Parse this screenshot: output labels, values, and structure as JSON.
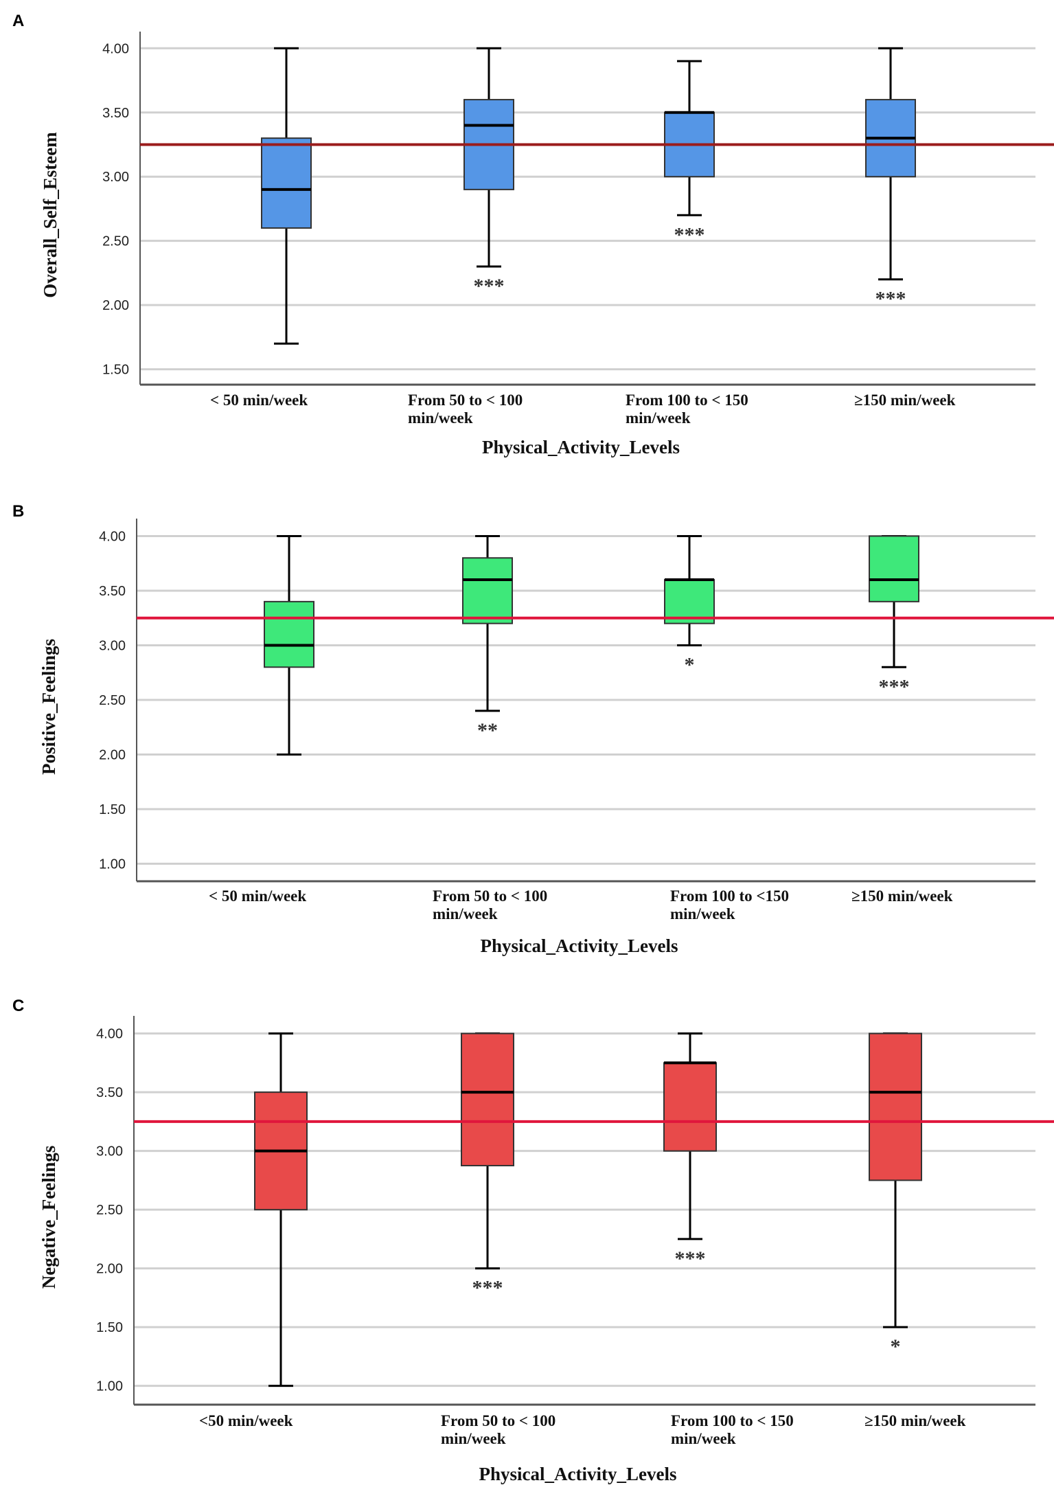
{
  "chart_data": [
    {
      "type": "box",
      "panel_label": "A",
      "ylabel": "Overall_Self_Esteem",
      "xlabel": "Physical_Activity_Levels",
      "ylim": [
        1.38,
        4.13
      ],
      "yticks": [
        "1.50",
        "2.00",
        "2.50",
        "3.00",
        "3.50",
        "4.00"
      ],
      "reference_line": 3.25,
      "reference_color": "#9b1c1c",
      "box_color": "#5596e6",
      "grid": true,
      "categories": [
        [
          "< 50 min/week"
        ],
        [
          "From 50 to < 100",
          "min/week"
        ],
        [
          "From 100 to < 150",
          "min/week"
        ],
        [
          "≥150 min/week"
        ]
      ],
      "boxes": [
        {
          "min": 1.7,
          "q1": 2.6,
          "median": 2.9,
          "q3": 3.3,
          "max": 4.0,
          "sig": ""
        },
        {
          "min": 2.3,
          "q1": 2.9,
          "median": 3.4,
          "q3": 3.6,
          "max": 4.0,
          "sig": "***"
        },
        {
          "min": 2.7,
          "q1": 3.0,
          "median": 3.5,
          "q3": 3.5,
          "max": 3.9,
          "sig": "***"
        },
        {
          "min": 2.2,
          "q1": 3.0,
          "median": 3.3,
          "q3": 3.6,
          "max": 4.0,
          "sig": "***"
        }
      ]
    },
    {
      "type": "box",
      "panel_label": "B",
      "ylabel": "Positive_Feelings",
      "xlabel": "Physical_Activity_Levels",
      "ylim": [
        0.84,
        4.16
      ],
      "yticks": [
        "1.00",
        "1.50",
        "2.00",
        "2.50",
        "3.00",
        "3.50",
        "4.00"
      ],
      "reference_line": 3.25,
      "reference_color": "#e0163c",
      "box_color": "#3ee87a",
      "grid": true,
      "categories": [
        [
          "< 50 min/week"
        ],
        [
          "From 50 to < 100",
          "min/week"
        ],
        [
          "From 100 to <150",
          "min/week"
        ],
        [
          "≥150 min/week"
        ]
      ],
      "boxes": [
        {
          "min": 2.0,
          "q1": 2.8,
          "median": 3.0,
          "q3": 3.4,
          "max": 4.0,
          "sig": ""
        },
        {
          "min": 2.4,
          "q1": 3.2,
          "median": 3.6,
          "q3": 3.8,
          "max": 4.0,
          "sig": "**"
        },
        {
          "min": 3.0,
          "q1": 3.2,
          "median": 3.6,
          "q3": 3.6,
          "max": 4.0,
          "sig": "*"
        },
        {
          "min": 2.8,
          "q1": 3.4,
          "median": 3.6,
          "q3": 4.0,
          "max": 4.0,
          "sig": "***"
        }
      ]
    },
    {
      "type": "box",
      "panel_label": "C",
      "ylabel": "Negative_Feelings",
      "xlabel": "Physical_Activity_Levels",
      "ylim": [
        0.84,
        4.15
      ],
      "yticks": [
        "1.00",
        "1.50",
        "2.00",
        "2.50",
        "3.00",
        "3.50",
        "4.00"
      ],
      "reference_line": 3.25,
      "reference_color": "#e0163c",
      "box_color": "#e84a4a",
      "grid": true,
      "categories": [
        [
          "<50 min/week"
        ],
        [
          "From 50 to < 100",
          "min/week"
        ],
        [
          "From 100 to < 150",
          "min/week"
        ],
        [
          "≥150 min/week"
        ]
      ],
      "boxes": [
        {
          "min": 1.0,
          "q1": 2.5,
          "median": 3.0,
          "q3": 3.5,
          "max": 4.0,
          "sig": ""
        },
        {
          "min": 2.0,
          "q1": 2.875,
          "median": 3.5,
          "q3": 4.0,
          "max": 4.0,
          "sig": "***"
        },
        {
          "min": 2.25,
          "q1": 3.0,
          "median": 3.75,
          "q3": 3.75,
          "max": 4.0,
          "sig": "***"
        },
        {
          "min": 1.5,
          "q1": 2.75,
          "median": 3.5,
          "q3": 4.0,
          "max": 4.0,
          "sig": "*"
        }
      ]
    }
  ]
}
